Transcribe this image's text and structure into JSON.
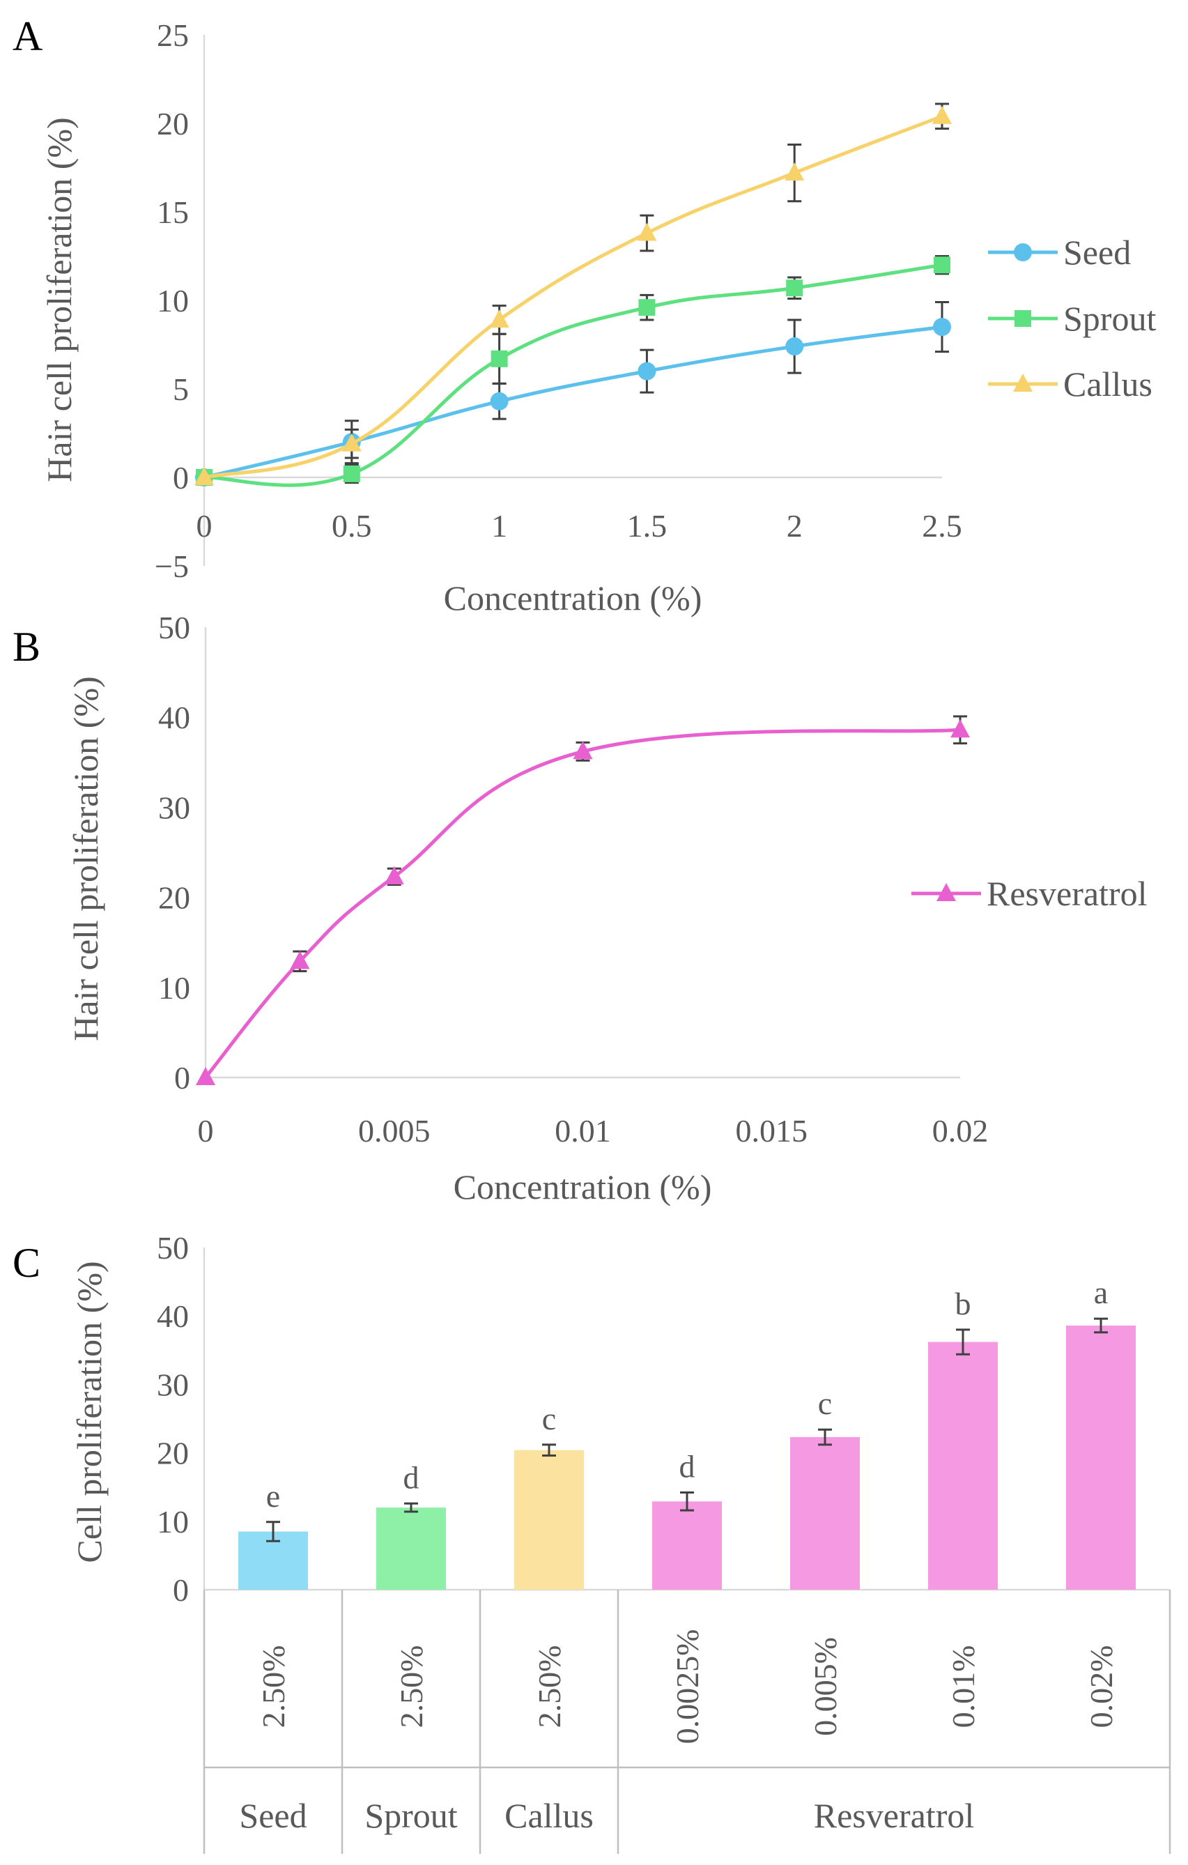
{
  "chart_data": [
    {
      "panel": "A",
      "type": "line",
      "xlabel": "Concentration (%)",
      "ylabel": "Hair cell proliferation (%)",
      "x": [
        0,
        0.5,
        1,
        1.5,
        2,
        2.5
      ],
      "x_ticks": [
        "0",
        "0.5",
        "1",
        "1.5",
        "2",
        "2.5"
      ],
      "ylim": [
        -5,
        25
      ],
      "y_ticks": [
        "−5",
        "0",
        "5",
        "10",
        "15",
        "20",
        "25"
      ],
      "y_tick_values": [
        -5,
        0,
        5,
        10,
        15,
        20,
        25
      ],
      "legend_position": "right",
      "series": [
        {
          "name": "Seed",
          "marker": "circle",
          "color": "#5bc0eb",
          "values": [
            0,
            2.0,
            4.3,
            6.0,
            7.4,
            8.5
          ],
          "errors": [
            0,
            1.2,
            1.0,
            1.2,
            1.5,
            1.4
          ]
        },
        {
          "name": "Sprout",
          "marker": "square",
          "color": "#5de07f",
          "values": [
            0,
            0.2,
            6.7,
            9.6,
            10.7,
            12.0
          ],
          "errors": [
            0,
            0.5,
            1.4,
            0.7,
            0.6,
            0.5
          ]
        },
        {
          "name": "Callus",
          "marker": "triangle",
          "color": "#f7d26a",
          "values": [
            0,
            1.9,
            8.9,
            13.8,
            17.2,
            20.4
          ],
          "errors": [
            0,
            0.8,
            0.8,
            1.0,
            1.6,
            0.7
          ]
        }
      ]
    },
    {
      "panel": "B",
      "type": "line",
      "xlabel": "Concentration (%)",
      "ylabel": "Hair cell proliferation (%)",
      "x": [
        0,
        0.0025,
        0.005,
        0.01,
        0.02
      ],
      "x_tick_values": [
        0,
        0.005,
        0.01,
        0.015,
        0.02
      ],
      "x_ticks": [
        "0",
        "0.005",
        "0.01",
        "0.015",
        "0.02"
      ],
      "ylim": [
        0,
        50
      ],
      "y_ticks": [
        "0",
        "10",
        "20",
        "30",
        "40",
        "50"
      ],
      "y_tick_values": [
        0,
        10,
        20,
        30,
        40,
        50
      ],
      "legend_position": "right",
      "series": [
        {
          "name": "Resveratrol",
          "marker": "triangle",
          "color": "#e85fcf",
          "values": [
            0,
            12.9,
            22.3,
            36.2,
            38.6
          ],
          "errors": [
            0,
            1.1,
            0.9,
            1.0,
            1.5
          ]
        }
      ]
    },
    {
      "panel": "C",
      "type": "bar",
      "ylabel": "Cell proliferation (%)",
      "ylim": [
        0,
        50
      ],
      "y_ticks": [
        "0",
        "10",
        "20",
        "30",
        "40",
        "50"
      ],
      "y_tick_values": [
        0,
        10,
        20,
        30,
        40,
        50
      ],
      "categories": [
        "2.50%",
        "2.50%",
        "2.50%",
        "0.0025%",
        "0.005%",
        "0.01%",
        "0.02%"
      ],
      "values": [
        8.5,
        12.0,
        20.4,
        12.9,
        22.3,
        36.2,
        38.6
      ],
      "errors": [
        1.4,
        0.6,
        0.8,
        1.3,
        1.1,
        1.8,
        1.0
      ],
      "significance": [
        "e",
        "d",
        "c",
        "d",
        "c",
        "b",
        "a"
      ],
      "colors": [
        "#8fdcf6",
        "#8eefa6",
        "#fbe29e",
        "#f59ae2",
        "#f59ae2",
        "#f59ae2",
        "#f59ae2"
      ],
      "groups": [
        {
          "label": "Seed",
          "span": 1
        },
        {
          "label": "Sprout",
          "span": 1
        },
        {
          "label": "Callus",
          "span": 1
        },
        {
          "label": "Resveratrol",
          "span": 4
        }
      ]
    }
  ]
}
